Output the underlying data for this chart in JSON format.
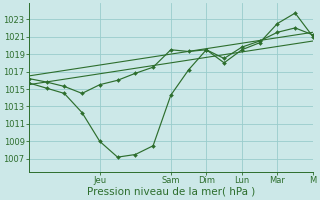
{
  "background_color": "#cce8e8",
  "grid_color": "#99cccc",
  "line_color": "#2d6e2d",
  "yticks": [
    1007,
    1009,
    1011,
    1013,
    1015,
    1017,
    1019,
    1021,
    1023
  ],
  "ylim": [
    1005.5,
    1024.8
  ],
  "xlim": [
    0,
    16
  ],
  "xlabel": "Pression niveau de la mer( hPa )",
  "xlabel_fontsize": 7.5,
  "tick_fontsize": 6,
  "day_labels": [
    "Jeu",
    "Sam",
    "Dim",
    "Lun",
    "Mar",
    "M"
  ],
  "day_positions": [
    4,
    8,
    10,
    12,
    14,
    16
  ],
  "main_x": [
    0,
    1,
    2,
    3,
    4,
    5,
    6,
    7,
    8,
    9,
    10,
    11,
    12,
    13,
    14,
    15,
    16
  ],
  "main_y": [
    1015.7,
    1015.1,
    1014.5,
    1012.3,
    1009.0,
    1007.2,
    1007.5,
    1008.5,
    1014.3,
    1017.2,
    1019.5,
    1018.0,
    1019.5,
    1020.3,
    1022.5,
    1023.7,
    1021.0
  ],
  "line2_x": [
    0,
    1,
    2,
    3,
    4,
    5,
    6,
    7,
    8,
    9,
    10,
    11,
    12,
    13,
    14,
    15,
    16
  ],
  "line2_y": [
    1016.2,
    1015.8,
    1015.3,
    1014.5,
    1015.5,
    1016.0,
    1016.8,
    1017.5,
    1019.5,
    1019.3,
    1019.5,
    1018.5,
    1019.8,
    1020.5,
    1021.5,
    1022.0,
    1021.2
  ],
  "trend1_x": [
    0,
    16
  ],
  "trend1_y": [
    1015.5,
    1020.5
  ],
  "trend2_x": [
    0,
    16
  ],
  "trend2_y": [
    1016.5,
    1021.5
  ]
}
